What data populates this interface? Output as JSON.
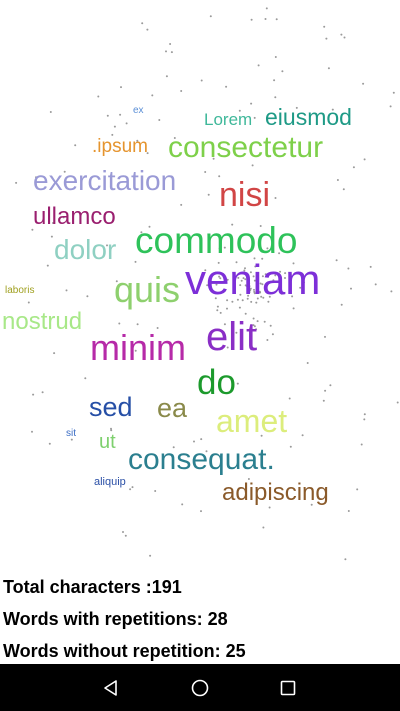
{
  "cloud": {
    "words": [
      {
        "id": "ex",
        "text": "ex",
        "color": "#5b8fd6"
      },
      {
        "id": "lorem",
        "text": "Lorem",
        "color": "#3fb89a"
      },
      {
        "id": "eiusmod",
        "text": "eiusmod",
        "color": "#1e9a86"
      },
      {
        "id": "ipsum",
        "text": ".ipsum",
        "color": "#e5942e"
      },
      {
        "id": "consectetur",
        "text": "consectetur",
        "color": "#7ed04a"
      },
      {
        "id": "exercitation",
        "text": "exercitation",
        "color": "#9a9ad6"
      },
      {
        "id": "nisi",
        "text": "nisi",
        "color": "#d14545"
      },
      {
        "id": "ullamco",
        "text": "ullamco",
        "color": "#9a1f6f"
      },
      {
        "id": "dolor",
        "text": "dolor",
        "color": "#8fd0c2"
      },
      {
        "id": "commodo",
        "text": "commodo",
        "color": "#2ec25a"
      },
      {
        "id": "laboris",
        "text": "laboris",
        "color": "#a0a020"
      },
      {
        "id": "quis",
        "text": "quis",
        "color": "#8ed06e"
      },
      {
        "id": "veniam",
        "text": "veniam",
        "color": "#7d2fd8"
      },
      {
        "id": "nostrud",
        "text": "nostrud",
        "color": "#a8e888"
      },
      {
        "id": "minim",
        "text": "minim",
        "color": "#b62aa8"
      },
      {
        "id": "elit",
        "text": "elit",
        "color": "#8a2ec6"
      },
      {
        "id": "do",
        "text": "do",
        "color": "#1c9a2c"
      },
      {
        "id": "sed",
        "text": "sed",
        "color": "#264fa6"
      },
      {
        "id": "ea",
        "text": "ea",
        "color": "#8a8a4a"
      },
      {
        "id": "amet",
        "text": "amet",
        "color": "#dced7c"
      },
      {
        "id": "sit",
        "text": "sit",
        "color": "#3b6dc4"
      },
      {
        "id": "ut",
        "text": "ut",
        "color": "#7ed06e"
      },
      {
        "id": "consequat",
        "text": "consequat.",
        "color": "#2b7f8f"
      },
      {
        "id": "aliquip",
        "text": "aliquip",
        "color": "#2a4fa6"
      },
      {
        "id": "adipiscing",
        "text": "adipiscing",
        "color": "#8a5a2a"
      }
    ]
  },
  "stats": {
    "total_chars": "Total characters :191",
    "with_rep": "Words with repetitions: 28",
    "without_rep": "Words without repetition: 25"
  },
  "navbar": {
    "back": "back-icon",
    "home": "home-icon",
    "recents": "recents-icon"
  }
}
